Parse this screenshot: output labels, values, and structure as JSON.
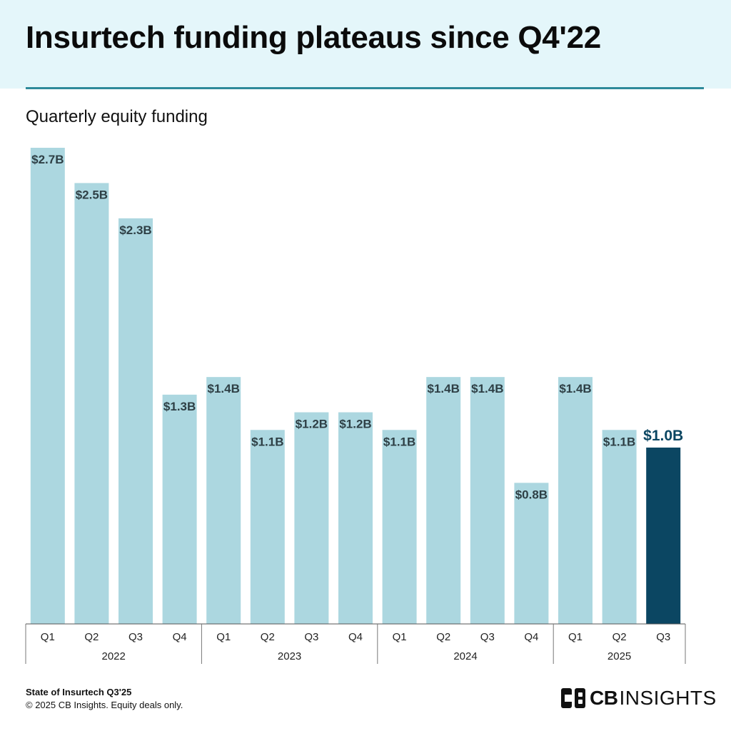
{
  "header": {
    "title": "Insurtech funding plateaus since Q4'22",
    "subtitle": "Quarterly equity funding"
  },
  "colors": {
    "bar": "#acd7e0",
    "bar_highlight": "#0b4662",
    "label": "#2e3f45",
    "label_highlight": "#0b4662",
    "header_band": "#e4f6fa",
    "header_rule": "#2f8a9a"
  },
  "chart_data": {
    "type": "bar",
    "title": "Quarterly equity funding",
    "unit": "$B",
    "ylim": [
      0,
      2.7
    ],
    "grid": false,
    "legend": "none",
    "categories": [
      "Q1",
      "Q2",
      "Q3",
      "Q4",
      "Q1",
      "Q2",
      "Q3",
      "Q4",
      "Q1",
      "Q2",
      "Q3",
      "Q4",
      "Q1",
      "Q2",
      "Q3"
    ],
    "year_groups": [
      {
        "label": "2022",
        "count": 4
      },
      {
        "label": "2023",
        "count": 4
      },
      {
        "label": "2024",
        "count": 4
      },
      {
        "label": "2025",
        "count": 3
      }
    ],
    "values": [
      2.7,
      2.5,
      2.3,
      1.3,
      1.4,
      1.1,
      1.2,
      1.2,
      1.1,
      1.4,
      1.4,
      0.8,
      1.4,
      1.1,
      1.0
    ],
    "value_labels": [
      "$2.7B",
      "$2.5B",
      "$2.3B",
      "$1.3B",
      "$1.4B",
      "$1.1B",
      "$1.2B",
      "$1.2B",
      "$1.1B",
      "$1.4B",
      "$1.4B",
      "$0.8B",
      "$1.4B",
      "$1.1B",
      "$1.0B"
    ],
    "highlight_index": 14
  },
  "footer": {
    "report": "State of Insurtech Q3'25",
    "note": "© 2025 CB Insights. Equity deals only."
  },
  "brand": {
    "name_bold": "CB",
    "name_light": "INSIGHTS",
    "icon": "cb-insights-logo-icon"
  }
}
